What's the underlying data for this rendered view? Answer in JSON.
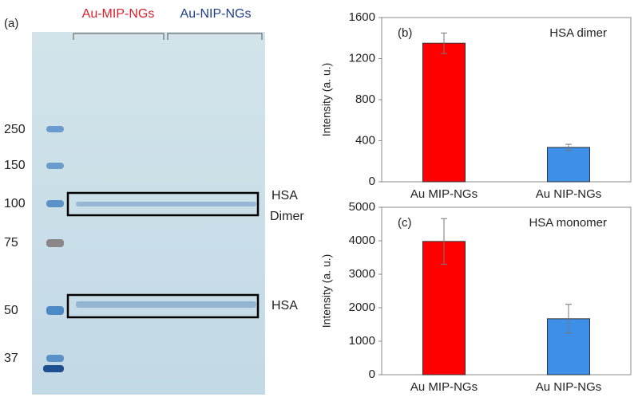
{
  "gel": {
    "panel_label": "(a)",
    "group_labels": [
      "Au-MIP-NGs",
      "Au-NIP-NGs"
    ],
    "markers": [
      250,
      150,
      100,
      75,
      50,
      37
    ],
    "band_labels": [
      "HSA",
      "Dimer",
      "HSA"
    ]
  },
  "chart_data": [
    {
      "type": "bar",
      "panel_label": "(b)",
      "title": "HSA dimer",
      "ylabel": "Intensity (a. u.)",
      "categories": [
        "Au MIP-NGs",
        "Au NIP-NGs"
      ],
      "values": [
        1350,
        335
      ],
      "errors": [
        100,
        30
      ],
      "colors": [
        "#ff0000",
        "#3d8fe8"
      ],
      "ylim": [
        0,
        1600
      ],
      "yticks": [
        0,
        400,
        800,
        1200,
        1600
      ]
    },
    {
      "type": "bar",
      "panel_label": "(c)",
      "title": "HSA monomer",
      "ylabel": "Intensity (a. u.)",
      "categories": [
        "Au MIP-NGs",
        "Au NIP-NGs"
      ],
      "values": [
        3980,
        1670
      ],
      "errors": [
        680,
        430
      ],
      "colors": [
        "#ff0000",
        "#3d8fe8"
      ],
      "ylim": [
        0,
        5000
      ],
      "yticks": [
        0,
        1000,
        2000,
        3000,
        4000,
        5000
      ]
    }
  ]
}
